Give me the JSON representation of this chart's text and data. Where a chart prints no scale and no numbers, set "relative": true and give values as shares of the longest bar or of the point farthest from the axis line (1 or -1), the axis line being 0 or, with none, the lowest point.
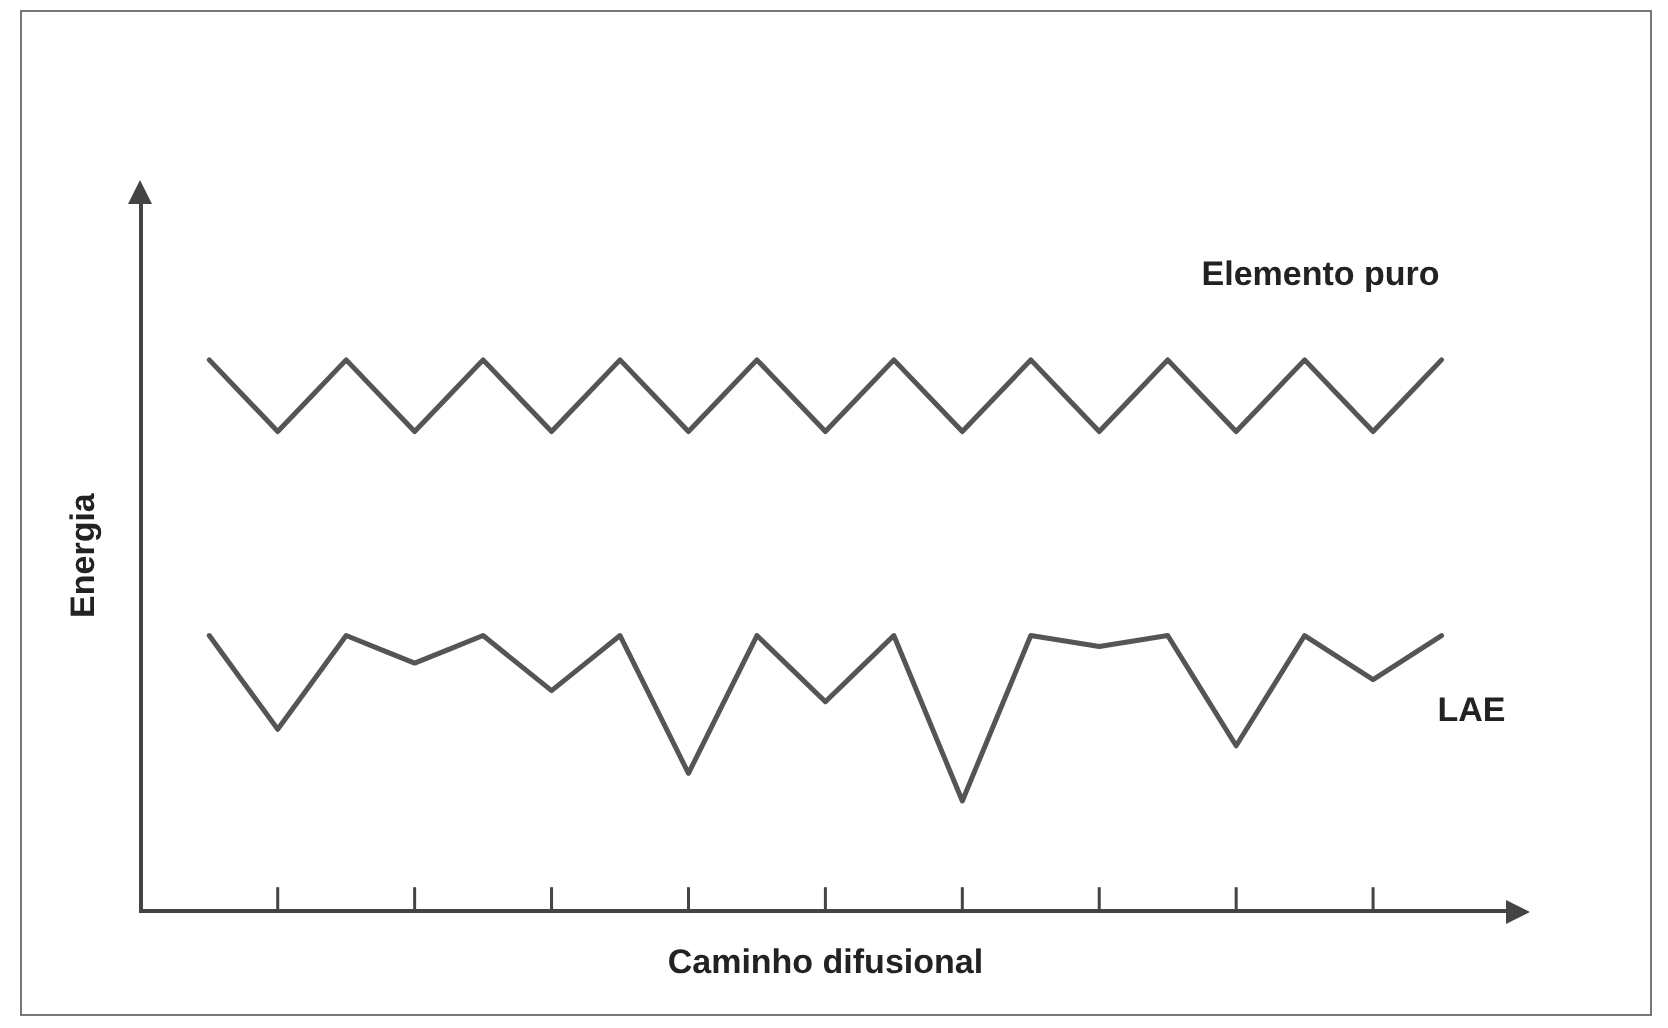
{
  "chart_data": {
    "type": "line",
    "xlabel": "Caminho difusional",
    "ylabel": "Energia",
    "relative": true,
    "categories": [
      null,
      null,
      null,
      null,
      null,
      null,
      null,
      null,
      null,
      null,
      null,
      null,
      null,
      null,
      null,
      null,
      null,
      null,
      null,
      null,
      null,
      null,
      null,
      null,
      null,
      null,
      null,
      null,
      null,
      null,
      null,
      null,
      null,
      null,
      null,
      null,
      null
    ],
    "grid": false,
    "legend": false,
    "marker": "none",
    "line_style": "solid",
    "series": [
      {
        "name": "Elemento puro",
        "color": "#555555",
        "values": [
          1,
          0.935,
          0.87,
          0.935,
          1,
          0.935,
          0.87,
          0.935,
          1,
          0.935,
          0.87,
          0.935,
          1,
          0.935,
          0.87,
          0.935,
          1,
          0.935,
          0.87,
          0.935,
          1,
          0.935,
          0.87,
          0.935,
          1,
          0.935,
          0.87,
          0.935,
          1,
          0.935,
          0.87,
          0.935,
          1,
          0.935,
          0.87,
          0.935,
          1
        ]
      },
      {
        "name": "LAE",
        "color": "#555555",
        "values": [
          0.5,
          0.415,
          0.33,
          0.415,
          0.5,
          0.475,
          0.45,
          0.475,
          0.5,
          0.45,
          0.4,
          0.45,
          0.5,
          0.375,
          0.25,
          0.375,
          0.5,
          0.44,
          0.38,
          0.44,
          0.5,
          0.35,
          0.2,
          0.35,
          0.5,
          0.49,
          0.48,
          0.49,
          0.5,
          0.4,
          0.3,
          0.4,
          0.5,
          0.46,
          0.42,
          0.46,
          0.5
        ]
      }
    ]
  }
}
